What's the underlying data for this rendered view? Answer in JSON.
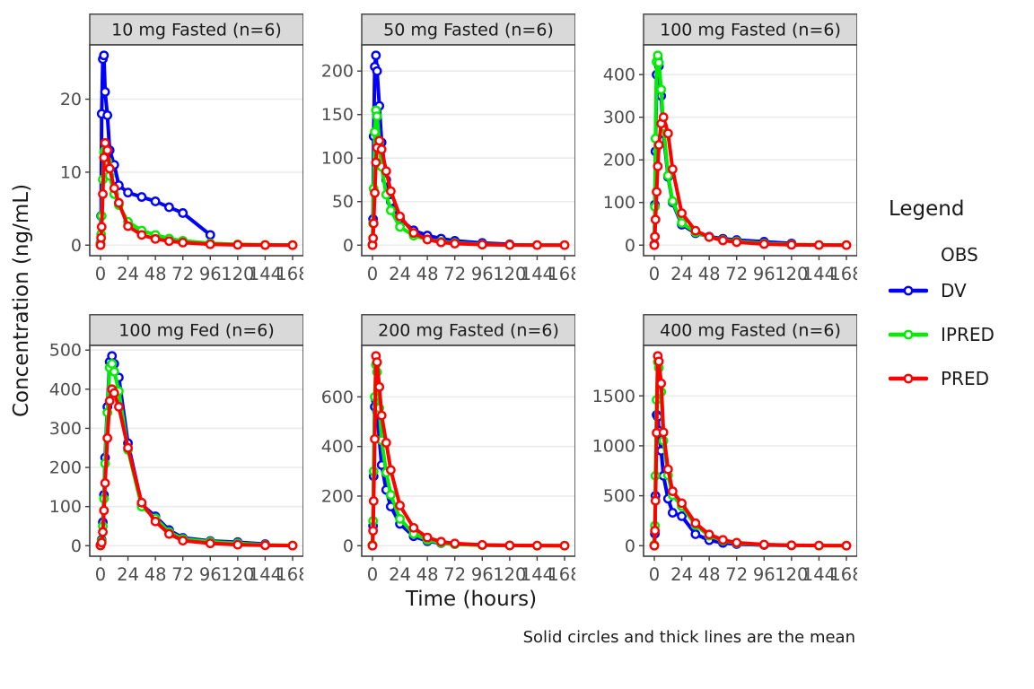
{
  "figure": {
    "y_axis_title": "Concentration (ng/mL)",
    "x_axis_title": "Time (hours)",
    "caption": "Solid circles and thick lines are the mean"
  },
  "legend": {
    "title": "Legend",
    "group_label": "OBS",
    "entries": [
      {
        "label": "DV",
        "color_key": "dv"
      },
      {
        "label": "IPRED",
        "color_key": "ipred"
      },
      {
        "label": "PRED",
        "color_key": "pred"
      }
    ]
  },
  "colors": {
    "dv": "#0000ff",
    "ipred": "#00ee00",
    "pred": "#ff0000",
    "strip_bg": "#d9d9d9",
    "border": "#3d3d3d",
    "grid": "#ebebeb",
    "tick_text": "#4d4d4d",
    "strip_text": "#1a1a1a",
    "marker_fill": "#ffffff"
  },
  "chart_data": {
    "type": "line",
    "layout": "facet-grid-2x3",
    "x": {
      "ticks": [
        0,
        24,
        48,
        72,
        96,
        120,
        144,
        168
      ],
      "range": [
        0,
        168
      ],
      "label": "Time (hours)"
    },
    "grid": "horizontal-major-only",
    "legend_position": "right",
    "panels": [
      {
        "title": "10 mg Fasted (n=6)",
        "row": 1,
        "col": 1,
        "yticks": [
          0,
          10,
          20
        ],
        "ymax": 26,
        "series": [
          {
            "name": "DV",
            "color_key": "dv",
            "times": [
              0,
              0.5,
              1,
              2,
              3,
              4,
              6,
              8,
              12,
              16,
              24,
              36,
              48,
              60,
              72,
              96
            ],
            "values": [
              0.3,
              4,
              18,
              25.5,
              26,
              21,
              17.8,
              13,
              11,
              8.2,
              7.2,
              6.6,
              6.0,
              5.2,
              4.4,
              1.4
            ]
          },
          {
            "name": "IPRED",
            "color_key": "ipred",
            "times": [
              0,
              0.5,
              1,
              2,
              3,
              4,
              6,
              8,
              12,
              16,
              24,
              36,
              48,
              60,
              72,
              96,
              120,
              144,
              168
            ],
            "values": [
              0.2,
              1.5,
              4,
              9,
              12.7,
              13,
              11.5,
              9.5,
              7,
              5.5,
              3.2,
              2.0,
              1.4,
              0.9,
              0.6,
              0.25,
              0.1,
              0.05,
              0.02
            ]
          },
          {
            "name": "PRED",
            "color_key": "pred",
            "times": [
              0,
              0.5,
              1,
              2,
              3,
              4,
              6,
              8,
              12,
              16,
              24,
              36,
              48,
              60,
              72,
              96,
              120,
              144,
              168
            ],
            "values": [
              0,
              1,
              2.5,
              7,
              12,
              14,
              13,
              10.5,
              7.8,
              5.8,
              2.6,
              1.4,
              0.85,
              0.55,
              0.35,
              0.12,
              0.04,
              0.01,
              0
            ]
          }
        ]
      },
      {
        "title": "50 mg Fasted (n=6)",
        "row": 1,
        "col": 2,
        "yticks": [
          0,
          50,
          100,
          150,
          200
        ],
        "ymax": 218,
        "series": [
          {
            "name": "DV",
            "color_key": "dv",
            "times": [
              0,
              0.5,
              1,
              2,
              3,
              4,
              6,
              8,
              12,
              16,
              24,
              36,
              48,
              60,
              72,
              96,
              120
            ],
            "values": [
              1,
              30,
              125,
              205,
              218,
              200,
              160,
              118,
              75,
              50,
              30,
              17,
              11,
              7.5,
              5,
              2.5,
              1
            ]
          },
          {
            "name": "IPRED",
            "color_key": "ipred",
            "times": [
              0,
              0.5,
              1,
              2,
              3,
              4,
              6,
              8,
              12,
              16,
              24,
              36,
              48,
              60,
              72,
              96,
              120,
              144,
              168
            ],
            "values": [
              0.5,
              25,
              65,
              130,
              155,
              148,
              118,
              90,
              58,
              40,
              21,
              11,
              6.5,
              4,
              2.5,
              0.9,
              0.3,
              0.1,
              0.03
            ]
          },
          {
            "name": "PRED",
            "color_key": "pred",
            "times": [
              0,
              0.5,
              1,
              2,
              3,
              4,
              6,
              8,
              12,
              16,
              24,
              36,
              48,
              60,
              72,
              96,
              120,
              144,
              168
            ],
            "values": [
              0,
              8,
              25,
              60,
              95,
              112,
              120,
              110,
              85,
              62,
              33,
              14,
              6.5,
              3.2,
              1.8,
              0.6,
              0.2,
              0.06,
              0.02
            ]
          }
        ]
      },
      {
        "title": "100 mg Fasted (n=6)",
        "row": 1,
        "col": 3,
        "yticks": [
          0,
          100,
          200,
          300,
          400
        ],
        "ymax": 445,
        "series": [
          {
            "name": "DV",
            "color_key": "dv",
            "times": [
              0,
              0.5,
              1,
              2,
              3,
              4,
              6,
              8,
              12,
              16,
              24,
              36,
              48,
              60,
              72,
              96,
              120
            ],
            "values": [
              2,
              95,
              220,
              400,
              435,
              420,
              350,
              262,
              160,
              100,
              48,
              28,
              20,
              15,
              12,
              8,
              4
            ]
          },
          {
            "name": "IPRED",
            "color_key": "ipred",
            "times": [
              0,
              0.5,
              1,
              2,
              3,
              4,
              6,
              8,
              12,
              16,
              24,
              36,
              48,
              60,
              72,
              96,
              120,
              144,
              168
            ],
            "values": [
              1,
              90,
              250,
              430,
              445,
              428,
              365,
              278,
              163,
              103,
              52,
              30,
              19,
              12,
              9,
              4,
              1.5,
              0.5,
              0.1
            ]
          },
          {
            "name": "PRED",
            "color_key": "pred",
            "times": [
              0,
              0.5,
              1,
              2,
              3,
              4,
              6,
              8,
              12,
              16,
              24,
              36,
              48,
              60,
              72,
              96,
              120,
              144,
              168
            ],
            "values": [
              0,
              20,
              60,
              125,
              185,
              235,
              285,
              300,
              262,
              178,
              75,
              34,
              19,
              11,
              7,
              2.5,
              0.8,
              0.25,
              0.08
            ]
          }
        ]
      },
      {
        "title": "100 mg Fed (n=6)",
        "row": 2,
        "col": 1,
        "yticks": [
          0,
          100,
          200,
          300,
          400,
          500
        ],
        "ymax": 485,
        "series": [
          {
            "name": "DV",
            "color_key": "dv",
            "times": [
              0,
              1,
              2,
              3,
              4,
              6,
              8,
              10,
              12,
              16,
              24,
              36,
              48,
              60,
              72,
              96,
              120,
              144
            ],
            "values": [
              2,
              15,
              60,
              130,
              225,
              355,
              470,
              485,
              465,
              430,
              262,
              105,
              75,
              40,
              20,
              12,
              9,
              4
            ]
          },
          {
            "name": "IPRED",
            "color_key": "ipred",
            "times": [
              0,
              1,
              2,
              3,
              4,
              6,
              8,
              10,
              12,
              16,
              24,
              36,
              48,
              60,
              72,
              96,
              120,
              144,
              168
            ],
            "values": [
              1,
              12,
              50,
              120,
              210,
              340,
              455,
              465,
              445,
              395,
              245,
              100,
              70,
              35,
              17,
              10,
              6,
              2,
              0.5
            ]
          },
          {
            "name": "PRED",
            "color_key": "pred",
            "times": [
              0,
              1,
              2,
              3,
              4,
              6,
              8,
              10,
              12,
              16,
              24,
              36,
              48,
              60,
              72,
              96,
              120,
              144,
              168
            ],
            "values": [
              0.5,
              8,
              35,
              90,
              160,
              275,
              370,
              400,
              390,
              355,
              250,
              110,
              62,
              30,
              13,
              6,
              2.5,
              1,
              0.3
            ]
          }
        ]
      },
      {
        "title": "200 mg Fasted (n=6)",
        "row": 2,
        "col": 2,
        "yticks": [
          0,
          200,
          400,
          600
        ],
        "ymax": 765,
        "series": [
          {
            "name": "DV",
            "color_key": "dv",
            "times": [
              0,
              0.5,
              1,
              2,
              3,
              4,
              6,
              8,
              12,
              16,
              24,
              36,
              48,
              60,
              72,
              96,
              120
            ],
            "values": [
              2,
              80,
              280,
              560,
              585,
              540,
              430,
              325,
              225,
              158,
              88,
              38,
              18,
              10,
              6,
              2.5,
              1
            ]
          },
          {
            "name": "IPRED",
            "color_key": "ipred",
            "times": [
              0,
              0.5,
              1,
              2,
              3,
              4,
              6,
              8,
              12,
              16,
              24,
              36,
              48,
              60,
              72,
              96,
              120,
              144,
              168
            ],
            "values": [
              3,
              100,
              300,
              600,
              730,
              700,
              555,
              425,
              295,
              205,
              108,
              48,
              23,
              11,
              6,
              2,
              0.7,
              0.2,
              0.05
            ]
          },
          {
            "name": "PRED",
            "color_key": "pred",
            "times": [
              0,
              0.5,
              1,
              2,
              3,
              4,
              6,
              8,
              12,
              16,
              24,
              36,
              48,
              60,
              72,
              96,
              120,
              144,
              168
            ],
            "values": [
              0,
              60,
              180,
              430,
              765,
              740,
              640,
              525,
              415,
              305,
              162,
              72,
              33,
              16,
              9,
              3,
              1,
              0.3,
              0.1
            ]
          }
        ]
      },
      {
        "title": "400 mg Fasted (n=6)",
        "row": 2,
        "col": 3,
        "yticks": [
          0,
          500,
          1000,
          1500
        ],
        "ymax": 1900,
        "series": [
          {
            "name": "DV",
            "color_key": "dv",
            "times": [
              0,
              0.5,
              1,
              2,
              3,
              4,
              6,
              8,
              12,
              16,
              24,
              36,
              48,
              60,
              72,
              96,
              120
            ],
            "values": [
              5,
              120,
              500,
              1310,
              1290,
              1150,
              950,
              700,
              470,
              330,
              295,
              115,
              55,
              28,
              16,
              6,
              3
            ]
          },
          {
            "name": "IPRED",
            "color_key": "ipred",
            "times": [
              0,
              0.5,
              1,
              2,
              3,
              4,
              6,
              8,
              12,
              16,
              24,
              36,
              48,
              60,
              72,
              96,
              120,
              144,
              168
            ],
            "values": [
              8,
              200,
              700,
              1460,
              1840,
              1780,
              1540,
              1050,
              705,
              505,
              395,
              205,
              100,
              50,
              25,
              9,
              3,
              1,
              0.3
            ]
          },
          {
            "name": "PRED",
            "color_key": "pred",
            "times": [
              0,
              0.5,
              1,
              2,
              3,
              4,
              6,
              8,
              12,
              16,
              24,
              36,
              48,
              60,
              72,
              96,
              120,
              144,
              168
            ],
            "values": [
              0,
              150,
              450,
              1130,
              1900,
              1845,
              1625,
              1135,
              765,
              545,
              425,
              225,
              112,
              58,
              30,
              11,
              4,
              1.2,
              0.4
            ]
          }
        ]
      }
    ]
  }
}
